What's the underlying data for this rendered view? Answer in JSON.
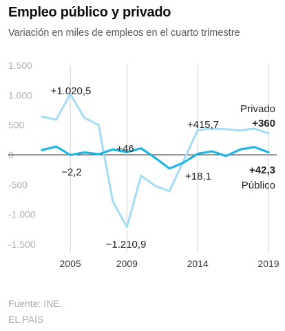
{
  "title": "Empleo público y privado",
  "subtitle": "Variación en miles de empleos en el cuarto trimestre",
  "chart_data": {
    "type": "line",
    "x": [
      2003,
      2004,
      2005,
      2006,
      2007,
      2008,
      2009,
      2010,
      2011,
      2012,
      2013,
      2014,
      2015,
      2016,
      2017,
      2018,
      2019
    ],
    "series": [
      {
        "name": "Privado",
        "color": "#a3dcf3",
        "values": [
          640,
          590,
          1020.5,
          620,
          500,
          -780,
          -1210.9,
          -350,
          -520,
          -610,
          -100,
          415.7,
          440,
          430,
          410,
          440,
          360
        ]
      },
      {
        "name": "Público",
        "color": "#1fb6e6",
        "values": [
          80,
          140,
          -2.2,
          40,
          10,
          90,
          46,
          110,
          -50,
          -230,
          -130,
          18.1,
          60,
          -20,
          90,
          130,
          42.3
        ]
      }
    ],
    "yticks": [
      1500,
      1000,
      500,
      0,
      -500,
      -1000,
      -1500
    ],
    "ytick_labels": [
      "1.500",
      "1.000",
      "500",
      "0",
      "-500",
      "-1.000",
      "-1.500"
    ],
    "xticks": [
      2005,
      2009,
      2014,
      2019
    ],
    "xtick_labels": [
      "2005",
      "2009",
      "2014",
      "2019"
    ],
    "ylim": [
      -1500,
      1500
    ],
    "xlim": [
      2003,
      2019
    ],
    "grid": false,
    "annotations": [
      {
        "text": "+1.020,5",
        "x": 2005,
        "bold": false
      },
      {
        "text": "−2,2",
        "x": 2005,
        "bold": false
      },
      {
        "text": "+46",
        "x": 2009,
        "bold": false
      },
      {
        "text": "−1.210,9",
        "x": 2009,
        "bold": false
      },
      {
        "text": "+415,7",
        "x": 2014,
        "bold": false
      },
      {
        "text": "+18,1",
        "x": 2014,
        "bold": false
      },
      {
        "text": "Privado",
        "x": 2019,
        "bold": false
      },
      {
        "text": "+360",
        "x": 2019,
        "bold": true
      },
      {
        "text": "+42,3",
        "x": 2019,
        "bold": true
      },
      {
        "text": "Público",
        "x": 2019,
        "bold": false
      }
    ]
  },
  "footer": {
    "source": "Fuente: INE.",
    "brand": "EL PAÍS"
  }
}
